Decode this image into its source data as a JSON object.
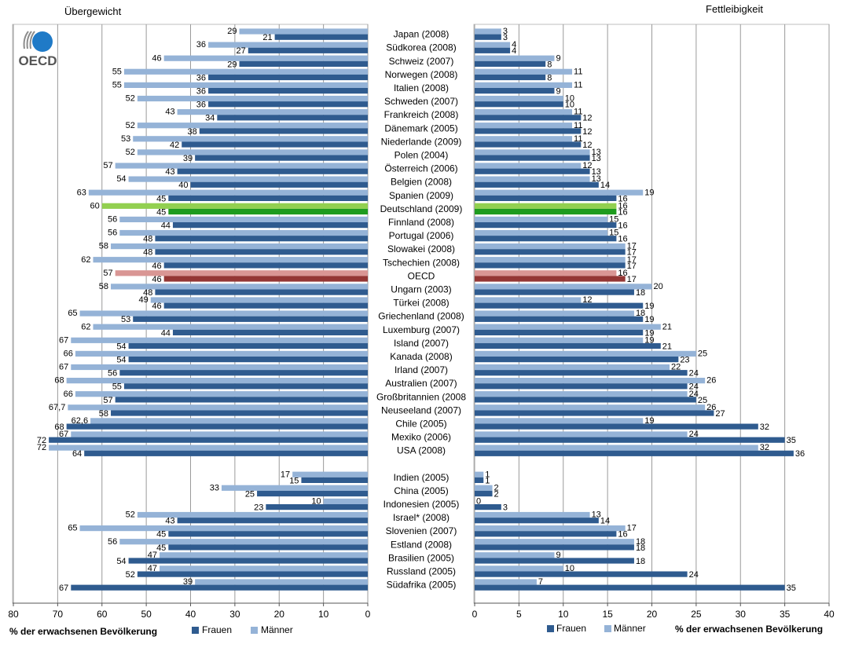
{
  "chart_data": {
    "type": "bar",
    "colors": {
      "frauen": "#2f5b8f",
      "maenner": "#95b3d7",
      "de_frauen": "#1e9b1e",
      "de_maenner": "#92d050",
      "oecd_frauen": "#943634",
      "oecd_maenner": "#d99694",
      "grid": "#9a9a9a",
      "axis": "#555555",
      "oecd_logo": "#1f7ac7"
    },
    "logo_text": "OECD",
    "overweight": {
      "title": "Übergewicht",
      "xlabel": "% der erwachsenen Bevölkerung",
      "xlim": [
        80,
        0
      ],
      "ticks": [
        80,
        70,
        60,
        50,
        40,
        30,
        20,
        10,
        0
      ],
      "legend": [
        {
          "name": "Frauen",
          "color": "#2f5b8f"
        },
        {
          "name": "Männer",
          "color": "#95b3d7"
        }
      ]
    },
    "obesity": {
      "title": "Fettleibigkeit",
      "xlabel": "% der erwachsenen Bevölkerung",
      "xlim": [
        0,
        40
      ],
      "ticks": [
        0,
        5,
        10,
        15,
        20,
        25,
        30,
        35,
        40
      ],
      "legend": [
        {
          "name": "Frauen",
          "color": "#2f5b8f"
        },
        {
          "name": "Männer",
          "color": "#95b3d7"
        }
      ]
    },
    "rows": [
      {
        "country": "Japan (2008)",
        "ow_m": 29,
        "ow_w": 21,
        "ob_m": 3,
        "ob_w": 3
      },
      {
        "country": "Südkorea (2008)",
        "ow_m": 36,
        "ow_w": 27,
        "ob_m": 4,
        "ob_w": 4
      },
      {
        "country": "Schweiz (2007)",
        "ow_m": 46,
        "ow_w": 29,
        "ob_m": 9,
        "ob_w": 8
      },
      {
        "country": "Norwegen (2008)",
        "ow_m": 55,
        "ow_w": 36,
        "ob_m": 11,
        "ob_w": 8
      },
      {
        "country": "Italien (2008)",
        "ow_m": 55,
        "ow_w": 36,
        "ob_m": 11,
        "ob_w": 9
      },
      {
        "country": "Schweden (2007)",
        "ow_m": 52,
        "ow_w": 36,
        "ob_m": 10,
        "ob_w": 10
      },
      {
        "country": "Frankreich (2008)",
        "ow_m": 43,
        "ow_w": 34,
        "ob_m": 11,
        "ob_w": 12
      },
      {
        "country": "Dänemark (2005)",
        "ow_m": 52,
        "ow_w": 38,
        "ob_m": 11,
        "ob_w": 12
      },
      {
        "country": "Niederlande (2009)",
        "ow_m": 53,
        "ow_w": 42,
        "ob_m": 11,
        "ob_w": 12
      },
      {
        "country": "Polen (2004)",
        "ow_m": 52,
        "ow_w": 39,
        "ob_m": 13,
        "ob_w": 13
      },
      {
        "country": "Österreich (2006)",
        "ow_m": 57,
        "ow_w": 43,
        "ob_m": 12,
        "ob_w": 13
      },
      {
        "country": "Belgien (2008)",
        "ow_m": 54,
        "ow_w": 40,
        "ob_m": 13,
        "ob_w": 14
      },
      {
        "country": "Spanien (2009)",
        "ow_m": 63,
        "ow_w": 45,
        "ob_m": 19,
        "ob_w": 16
      },
      {
        "country": "Deutschland (2009)",
        "ow_m": 60,
        "ow_w": 45,
        "ob_m": 16,
        "ob_w": 16,
        "highlight": "de"
      },
      {
        "country": "Finnland (2008)",
        "ow_m": 56,
        "ow_w": 44,
        "ob_m": 15,
        "ob_w": 16
      },
      {
        "country": "Portugal (2006)",
        "ow_m": 56,
        "ow_w": 48,
        "ob_m": 15,
        "ob_w": 16
      },
      {
        "country": "Slowakei (2008)",
        "ow_m": 58,
        "ow_w": 48,
        "ob_m": 17,
        "ob_w": 17
      },
      {
        "country": "Tschechien (2008)",
        "ow_m": 62,
        "ow_w": 46,
        "ob_m": 17,
        "ob_w": 17
      },
      {
        "country": "OECD",
        "ow_m": 57,
        "ow_w": 46,
        "ob_m": 16,
        "ob_w": 17,
        "highlight": "oecd"
      },
      {
        "country": "Ungarn (2003)",
        "ow_m": 58,
        "ow_w": 48,
        "ob_m": 20,
        "ob_w": 18
      },
      {
        "country": "Türkei (2008)",
        "ow_m": 49,
        "ow_w": 46,
        "ob_m": 12,
        "ob_w": 19
      },
      {
        "country": "Griechenland (2008)",
        "ow_m": 65,
        "ow_w": 53,
        "ob_m": 18,
        "ob_w": 19
      },
      {
        "country": "Luxemburg (2007)",
        "ow_m": 62,
        "ow_w": 44,
        "ob_m": 21,
        "ob_w": 19
      },
      {
        "country": "Island (2007)",
        "ow_m": 67,
        "ow_w": 54,
        "ob_m": 19,
        "ob_w": 21
      },
      {
        "country": "Kanada (2008)",
        "ow_m": 66,
        "ow_w": 54,
        "ob_m": 25,
        "ob_w": 23
      },
      {
        "country": "Irland (2007)",
        "ow_m": 67,
        "ow_w": 56,
        "ob_m": 22,
        "ob_w": 24
      },
      {
        "country": "Australien (2007)",
        "ow_m": 68,
        "ow_w": 55,
        "ob_m": 26,
        "ob_w": 24
      },
      {
        "country": "Großbritannien (2008",
        "ow_m": 66,
        "ow_w": 57,
        "ob_m": 24,
        "ob_w": 25
      },
      {
        "country": "Neuseeland (2007)",
        "ow_m": 67.7,
        "ow_w": 58,
        "ob_m": 26,
        "ob_w": 27
      },
      {
        "country": "Chile (2005)",
        "ow_m": 62.6,
        "ow_w": 68,
        "ob_m": 19,
        "ob_w": 32
      },
      {
        "country": "Mexiko (2006)",
        "ow_m": 67,
        "ow_w": 72,
        "ob_m": 24,
        "ob_w": 35
      },
      {
        "country": "USA (2008)",
        "ow_m": 72,
        "ow_w": 64,
        "ob_m": 32,
        "ob_w": 36
      },
      {
        "country": "Indien (2005)",
        "ow_m": 17,
        "ow_w": 15,
        "ob_m": 1,
        "ob_w": 1
      },
      {
        "country": "China (2005)",
        "ow_m": 33,
        "ow_w": 25,
        "ob_m": 2,
        "ob_w": 2
      },
      {
        "country": "Indonesien (2005)",
        "ow_m": 10,
        "ow_w": 23,
        "ob_m": 0,
        "ob_w": 3
      },
      {
        "country": "Israel* (2008)",
        "ow_m": 52,
        "ow_w": 43,
        "ob_m": 13,
        "ob_w": 14
      },
      {
        "country": "Slovenien (2007)",
        "ow_m": 65,
        "ow_w": 45,
        "ob_m": 17,
        "ob_w": 16
      },
      {
        "country": "Estland (2008)",
        "ow_m": 56,
        "ow_w": 45,
        "ob_m": 18,
        "ob_w": 18
      },
      {
        "country": "Brasilien (2005)",
        "ow_m": 47,
        "ow_w": 54,
        "ob_m": 9,
        "ob_w": 18
      },
      {
        "country": "Russland (2005)",
        "ow_m": 47,
        "ow_w": 52,
        "ob_m": 10,
        "ob_w": 24
      },
      {
        "country": "Südafrika (2005)",
        "ow_m": 39,
        "ow_w": 67,
        "ob_m": 7,
        "ob_w": 35
      }
    ]
  }
}
